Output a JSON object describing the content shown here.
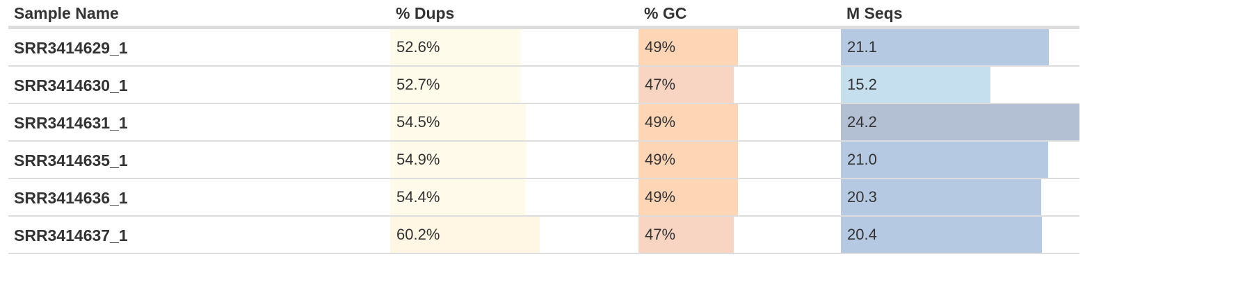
{
  "table": {
    "headers": {
      "sample_name": "Sample Name",
      "dups": "% Dups",
      "gc": "% GC",
      "mseqs": "M Seqs"
    },
    "scales": {
      "dups_max": 100,
      "gc_max": 100,
      "mseqs_max": 24.2
    },
    "rows": [
      {
        "name": "SRR3414629_1",
        "dups": "52.6%",
        "dups_value": 52.6,
        "dups_color": "#fffbea",
        "gc": "49%",
        "gc_value": 49,
        "gc_color": "#ffd6b5",
        "mseqs": "21.1",
        "mseqs_value": 21.1,
        "mseqs_color": "#b5cae2"
      },
      {
        "name": "SRR3414630_1",
        "dups": "52.7%",
        "dups_value": 52.7,
        "dups_color": "#fffbea",
        "gc": "47%",
        "gc_value": 47,
        "gc_color": "#f8d5c2",
        "mseqs": "15.2",
        "mseqs_value": 15.2,
        "mseqs_color": "#c6dfef"
      },
      {
        "name": "SRR3414631_1",
        "dups": "54.5%",
        "dups_value": 54.5,
        "dups_color": "#fffaea",
        "gc": "49%",
        "gc_value": 49,
        "gc_color": "#ffd6b5",
        "mseqs": "24.2",
        "mseqs_value": 24.2,
        "mseqs_color": "#b3bfd3"
      },
      {
        "name": "SRR3414635_1",
        "dups": "54.9%",
        "dups_value": 54.9,
        "dups_color": "#fffaea",
        "gc": "49%",
        "gc_value": 49,
        "gc_color": "#ffd6b5",
        "mseqs": "21.0",
        "mseqs_value": 21.0,
        "mseqs_color": "#b5cae2"
      },
      {
        "name": "SRR3414636_1",
        "dups": "54.4%",
        "dups_value": 54.4,
        "dups_color": "#fffaea",
        "gc": "49%",
        "gc_value": 49,
        "gc_color": "#ffd6b5",
        "mseqs": "20.3",
        "mseqs_value": 20.3,
        "mseqs_color": "#b5cae2"
      },
      {
        "name": "SRR3414637_1",
        "dups": "60.2%",
        "dups_value": 60.2,
        "dups_color": "#fff6e3",
        "gc": "47%",
        "gc_value": 47,
        "gc_color": "#f8d5c2",
        "mseqs": "20.4",
        "mseqs_value": 20.4,
        "mseqs_color": "#b5cae2"
      }
    ]
  }
}
